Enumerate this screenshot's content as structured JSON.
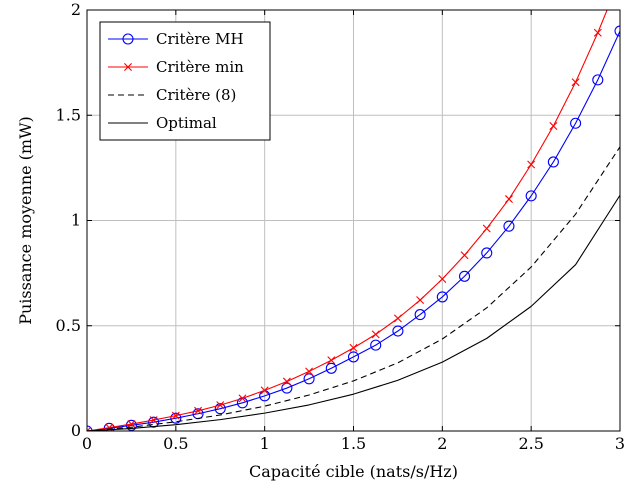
{
  "chart_data": {
    "type": "line",
    "title": "",
    "xlabel": "Capacité cible (nats/s/Hz)",
    "ylabel": "Puissance moyenne (mW)",
    "xlim": [
      0,
      3
    ],
    "ylim": [
      0,
      2
    ],
    "xticks": [
      0,
      0.5,
      1,
      1.5,
      2,
      2.5,
      3
    ],
    "xtick_labels": [
      "0",
      "0.5",
      "1",
      "1.5",
      "2",
      "2.5",
      "3"
    ],
    "yticks": [
      0,
      0.5,
      1,
      1.5,
      2
    ],
    "ytick_labels": [
      "0",
      "0.5",
      "1",
      "1.5",
      "2"
    ],
    "grid": true,
    "legend_position": "top-left",
    "series": [
      {
        "name": "Critère MH",
        "color": "#0000ff",
        "line_style": "solid",
        "marker": "circle",
        "x": [
          0,
          0.125,
          0.25,
          0.375,
          0.5,
          0.625,
          0.75,
          0.875,
          1,
          1.125,
          1.25,
          1.375,
          1.5,
          1.625,
          1.75,
          1.875,
          2,
          2.125,
          2.25,
          2.375,
          2.5,
          2.625,
          2.75,
          2.875,
          3
        ],
        "y": [
          0,
          0.013,
          0.027,
          0.042,
          0.061,
          0.082,
          0.106,
          0.134,
          0.167,
          0.204,
          0.248,
          0.298,
          0.352,
          0.408,
          0.475,
          0.553,
          0.637,
          0.735,
          0.846,
          0.973,
          1.117,
          1.278,
          1.462,
          1.668,
          1.9
        ]
      },
      {
        "name": "Critère min",
        "color": "#ff0000",
        "line_style": "solid",
        "marker": "cross",
        "x": [
          0,
          0.125,
          0.25,
          0.375,
          0.5,
          0.625,
          0.75,
          0.875,
          1,
          1.125,
          1.25,
          1.375,
          1.5,
          1.625,
          1.75,
          1.875,
          2,
          2.125,
          2.25,
          2.375,
          2.5,
          2.625,
          2.75,
          2.875,
          3
        ],
        "y": [
          0,
          0.016,
          0.033,
          0.052,
          0.073,
          0.096,
          0.123,
          0.155,
          0.193,
          0.235,
          0.283,
          0.336,
          0.395,
          0.459,
          0.535,
          0.622,
          0.722,
          0.835,
          0.962,
          1.102,
          1.266,
          1.449,
          1.657,
          1.892,
          2.15
        ]
      },
      {
        "name": "Critère (8)",
        "color": "#000000",
        "line_style": "dashed",
        "marker": "none",
        "x": [
          0,
          0.25,
          0.5,
          0.75,
          1,
          1.25,
          1.5,
          1.75,
          2,
          2.25,
          2.5,
          2.75,
          3
        ],
        "y": [
          0,
          0.018,
          0.044,
          0.076,
          0.118,
          0.171,
          0.238,
          0.324,
          0.437,
          0.585,
          0.779,
          1.03,
          1.35
        ]
      },
      {
        "name": "Optimal",
        "color": "#000000",
        "line_style": "solid",
        "marker": "none",
        "x": [
          0,
          0.25,
          0.5,
          0.75,
          1,
          1.25,
          1.5,
          1.75,
          2,
          2.25,
          2.5,
          2.75,
          3
        ],
        "y": [
          0,
          0.012,
          0.03,
          0.054,
          0.085,
          0.124,
          0.175,
          0.241,
          0.327,
          0.44,
          0.592,
          0.79,
          1.12
        ]
      }
    ]
  }
}
